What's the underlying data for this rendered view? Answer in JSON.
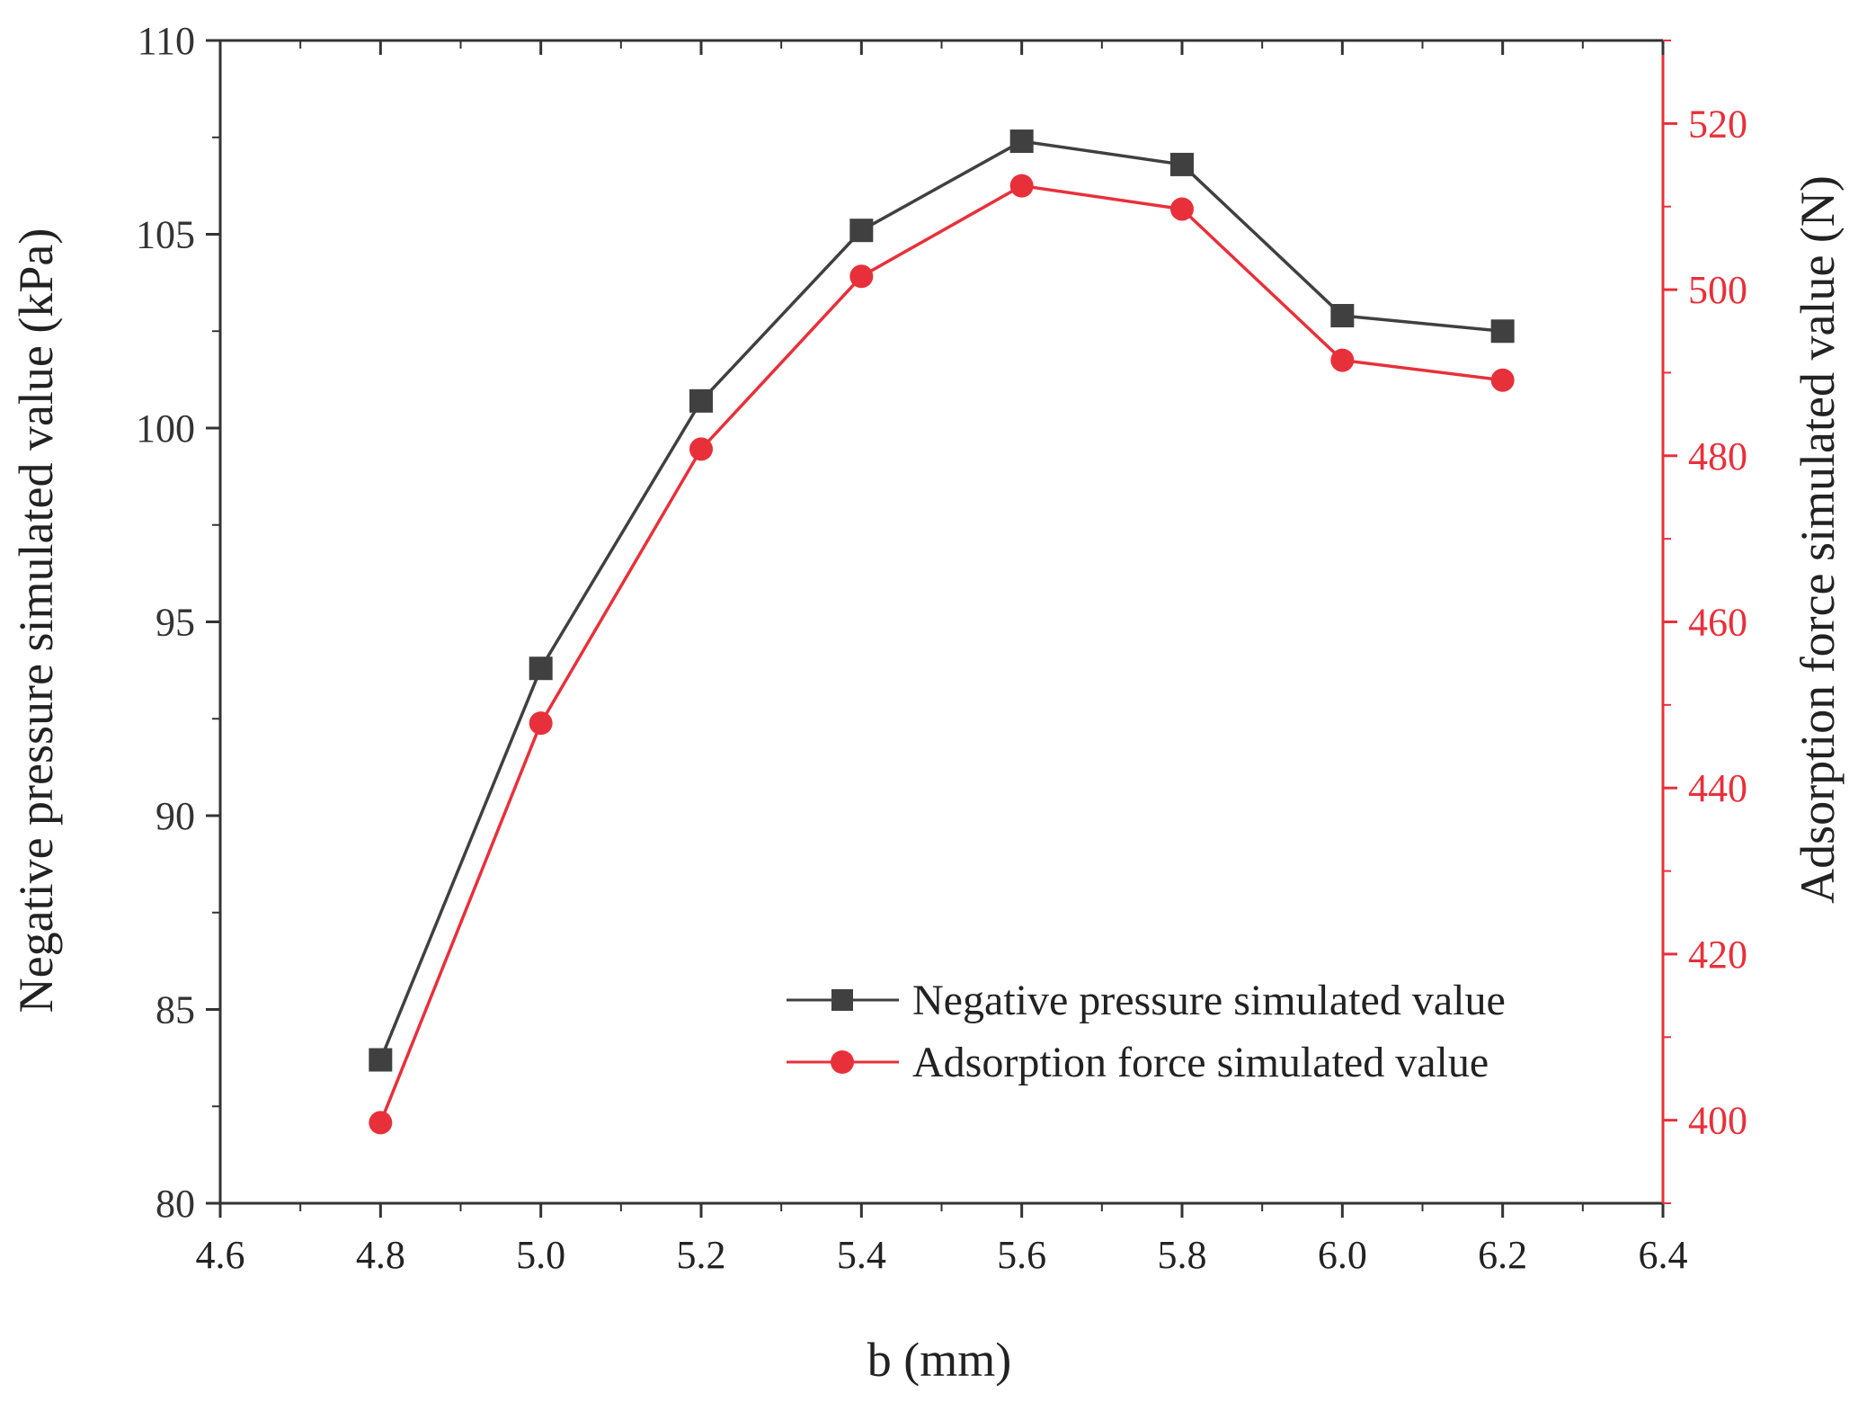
{
  "chart_data": {
    "type": "line",
    "title": "",
    "xlabel": "b (mm)",
    "ylabel_left": "Negative pressure simulated value (kPa)",
    "ylabel_right": "Adsorption force simulated value (N)",
    "xlim": [
      4.6,
      6.4
    ],
    "ylim_left": [
      80,
      110
    ],
    "ylim_right": [
      390,
      530
    ],
    "x_ticks": [
      4.6,
      4.8,
      5.0,
      5.2,
      5.4,
      5.6,
      5.8,
      6.0,
      6.2,
      6.4
    ],
    "x_tick_labels": [
      "4.6",
      "4.8",
      "5.0",
      "5.2",
      "5.4",
      "5.6",
      "5.8",
      "6.0",
      "6.2",
      "6.4"
    ],
    "y_left_ticks": [
      80,
      85,
      90,
      95,
      100,
      105,
      110
    ],
    "y_left_tick_labels": [
      "80",
      "85",
      "90",
      "95",
      "100",
      "105",
      "110"
    ],
    "y_right_ticks": [
      400,
      420,
      440,
      460,
      480,
      500,
      520
    ],
    "y_right_tick_labels": [
      "400",
      "420",
      "440",
      "460",
      "480",
      "500",
      "520"
    ],
    "x": [
      4.8,
      5.0,
      5.2,
      5.4,
      5.6,
      5.8,
      6.0,
      6.2
    ],
    "series": [
      {
        "name": "Negative pressure simulated value",
        "axis": "left",
        "marker": "square",
        "color": "#404040",
        "values": [
          83.7,
          93.8,
          100.7,
          105.1,
          107.4,
          106.8,
          102.9,
          102.5
        ]
      },
      {
        "name": "Adsorption force simulated value",
        "axis": "right",
        "marker": "circle",
        "color": "#e8303a",
        "values": [
          399.7,
          447.8,
          480.8,
          501.6,
          512.5,
          509.7,
          491.5,
          489.1
        ]
      }
    ],
    "legend_position": "lower-right",
    "grid": false,
    "colors": {
      "axis": "#333333",
      "right_axis": "#e8303a"
    }
  }
}
